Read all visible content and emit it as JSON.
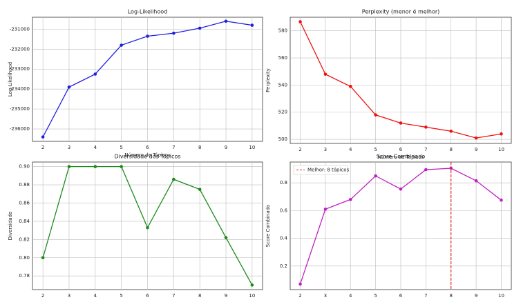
{
  "chart_data": [
    {
      "type": "line",
      "title": "Log-Likelihood",
      "xlabel": "Número de Tópicos",
      "ylabel": "Log-Likelihood",
      "x": [
        2,
        3,
        4,
        5,
        6,
        7,
        8,
        9,
        10
      ],
      "color": "#1f1fe0",
      "values": [
        -236400,
        -233900,
        -233250,
        -231800,
        -231350,
        -231200,
        -230950,
        -230600,
        -230800
      ],
      "xlim": [
        1.6,
        10.4
      ],
      "xticks": [
        2,
        3,
        4,
        5,
        6,
        7,
        8,
        9,
        10
      ],
      "ylim": [
        -236620,
        -230400
      ],
      "yticks": [
        -236000,
        -235000,
        -234000,
        -233000,
        -232000,
        -231000
      ],
      "grid": true
    },
    {
      "type": "line",
      "title": "Perplexity (menor é melhor)",
      "xlabel": "Número de Tópicos",
      "ylabel": "Perplexity",
      "x": [
        2,
        3,
        4,
        5,
        6,
        7,
        8,
        9,
        10
      ],
      "color": "#f01010",
      "values": [
        586.7,
        548,
        539,
        518,
        512,
        509,
        506,
        501,
        504
      ],
      "xlim": [
        1.6,
        10.4
      ],
      "xticks": [
        2,
        3,
        4,
        5,
        6,
        7,
        8,
        9,
        10
      ],
      "ylim": [
        497,
        590
      ],
      "yticks": [
        500,
        520,
        540,
        560,
        580
      ],
      "grid": true
    },
    {
      "type": "line",
      "title": "Diversidade dos Tópicos",
      "xlabel": "Número de Tópicos",
      "ylabel": "Diversidade",
      "x": [
        2,
        3,
        4,
        5,
        6,
        7,
        8,
        9,
        10
      ],
      "color": "#1a8a1a",
      "values": [
        0.8,
        0.9,
        0.9,
        0.9,
        0.833,
        0.886,
        0.875,
        0.822,
        0.77
      ],
      "xlim": [
        1.6,
        10.4
      ],
      "xticks": [
        2,
        3,
        4,
        5,
        6,
        7,
        8,
        9,
        10
      ],
      "ylim": [
        0.765,
        0.905
      ],
      "yticks": [
        {
          "value": 0.78,
          "label": "0.78"
        },
        {
          "value": 0.8,
          "label": "0.80"
        },
        {
          "value": 0.82,
          "label": "0.82"
        },
        {
          "value": 0.84,
          "label": "0.84"
        },
        {
          "value": 0.86,
          "label": "0.86"
        },
        {
          "value": 0.88,
          "label": "0.88"
        },
        {
          "value": 0.9,
          "label": "0.90"
        }
      ],
      "grid": true
    },
    {
      "type": "line",
      "title": "Score Combinado",
      "xlabel": "Número de Tópicos",
      "ylabel": "Score Combinado",
      "x": [
        2,
        3,
        4,
        5,
        6,
        7,
        8,
        9,
        10
      ],
      "color": "#c020c0",
      "values": [
        0.07,
        0.61,
        0.68,
        0.85,
        0.755,
        0.895,
        0.905,
        0.815,
        0.675
      ],
      "xlim": [
        1.6,
        10.4
      ],
      "xticks": [
        2,
        3,
        4,
        5,
        6,
        7,
        8,
        9,
        10
      ],
      "ylim": [
        0.03,
        0.95
      ],
      "yticks": [
        0.2,
        0.4,
        0.6,
        0.8
      ],
      "grid": true,
      "vline": {
        "x": 8,
        "label": "Melhor: 8 tópicos",
        "color": "#e02020"
      },
      "legend": "upper left"
    }
  ]
}
